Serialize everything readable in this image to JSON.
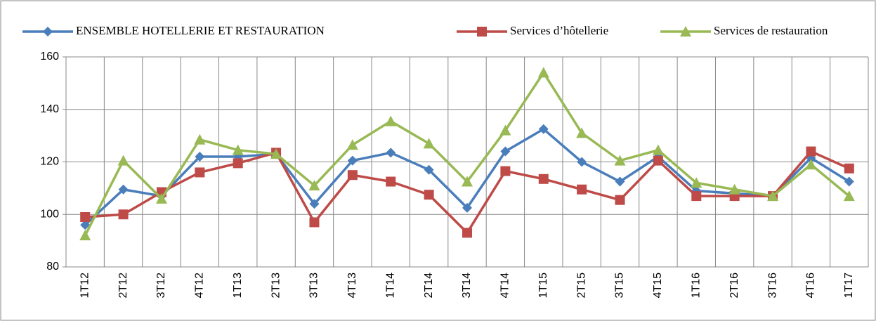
{
  "chart_data": {
    "type": "line",
    "categories": [
      "1T12",
      "2T12",
      "3T12",
      "4T12",
      "1T13",
      "2T13",
      "3T13",
      "4T13",
      "1T14",
      "2T14",
      "3T14",
      "4T14",
      "1T15",
      "2T15",
      "3T15",
      "4T15",
      "1T16",
      "2T16",
      "3T16",
      "4T16",
      "1T17"
    ],
    "series": [
      {
        "name": "ENSEMBLE HOTELLERIE ET RESTAURATION",
        "color": "#4a7ebb",
        "marker": "diamond",
        "values": [
          96,
          109.5,
          107,
          122,
          122,
          123,
          104,
          120.5,
          123.5,
          117,
          102.5,
          124,
          132.5,
          120,
          112.5,
          122,
          109,
          108,
          107,
          121.5,
          112.5
        ]
      },
      {
        "name": "Services d’hôtellerie",
        "color": "#be4b48",
        "marker": "square",
        "values": [
          99,
          100,
          108.5,
          116,
          119.5,
          123.5,
          97,
          115,
          112.5,
          107.5,
          93,
          116.5,
          113.5,
          109.5,
          105.5,
          120.5,
          107,
          107,
          107,
          124,
          117.5
        ]
      },
      {
        "name": "Services de restauration",
        "color": "#98b954",
        "marker": "triangle",
        "values": [
          92,
          120.5,
          106,
          128.5,
          124.5,
          123,
          111,
          126.5,
          135.5,
          127,
          112.5,
          132,
          154,
          131,
          120.5,
          124.5,
          112,
          109.5,
          107,
          119,
          107
        ]
      }
    ],
    "ylim": [
      80,
      160
    ],
    "yticks": [
      80,
      100,
      120,
      140,
      160
    ],
    "grid": true,
    "legend": "top"
  }
}
